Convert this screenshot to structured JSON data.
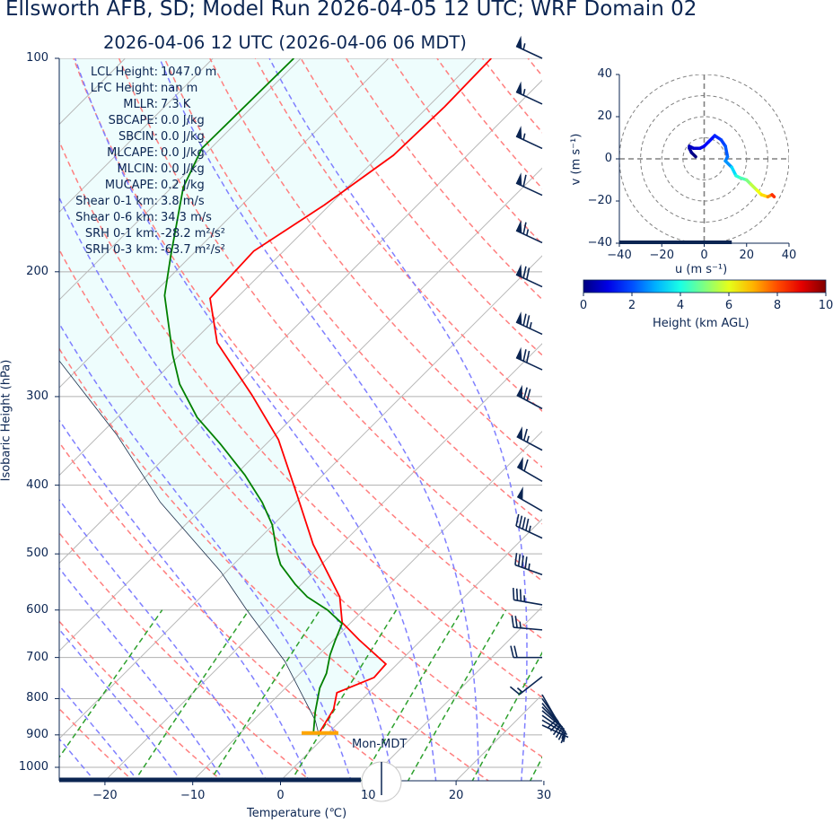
{
  "title": "Ellsworth AFB, SD; Model Run 2026-04-05 12 UTC; WRF Domain 02",
  "subtitle": "2026-04-06 12 UTC  (2026-04-06 06 MDT)",
  "stats": [
    {
      "label": "LCL Height:",
      "value": "1047.0 m"
    },
    {
      "label": "LFC Height:",
      "value": "nan m"
    },
    {
      "label": "MLLR:",
      "value": "7.3 K"
    },
    {
      "label": "SBCAPE:",
      "value": "0.0 J/kg"
    },
    {
      "label": "SBCIN:",
      "value": "0.0 J/kg"
    },
    {
      "label": "MLCAPE:",
      "value": "0.0 J/kg"
    },
    {
      "label": "MLCIN:",
      "value": "0.0 J/kg"
    },
    {
      "label": "MUCAPE:",
      "value": "0.2 J/kg"
    },
    {
      "label": "Shear 0-1 km:",
      "value": "3.8 m/s"
    },
    {
      "label": "Shear 0-6 km:",
      "value": "34.3 m/s"
    },
    {
      "label": "SRH 0-1 km:",
      "value": "-28.2 m²/s²"
    },
    {
      "label": "SRH 0-3 km:",
      "value": "-63.7 m²/s²"
    }
  ],
  "annotation": "Mon-MDT",
  "chart_data": [
    {
      "type": "line",
      "kind": "skew-T log-P",
      "xlabel": "Temperature (℃)",
      "ylabel": "Isobaric Height (hPa)",
      "xlim": [
        -25,
        30
      ],
      "ylim": [
        1050,
        100
      ],
      "y_scale": "log",
      "x_ticks": [
        "−20",
        "−10",
        "0",
        "10",
        "20",
        "30"
      ],
      "x_tick_values": [
        -20,
        -10,
        0,
        10,
        20,
        30
      ],
      "y_ticks": [
        "100",
        "200",
        "300",
        "400",
        "500",
        "600",
        "700",
        "800",
        "900",
        "1000"
      ],
      "y_tick_values": [
        100,
        200,
        300,
        400,
        500,
        600,
        700,
        800,
        900,
        1000
      ],
      "grid": true,
      "colors": {
        "temperature": "#ff0000",
        "dewpoint": "#008000",
        "parcel": "#1c2e4a",
        "cin_shade": "#eefdfd",
        "dry_adiabats": "#ff7f7f",
        "moist_adiabats": "#7f7fff",
        "mixing_ratio": "#2ca02c",
        "lcl_marker": "#ffa500",
        "barbs": "#0b2552"
      },
      "temperature": [
        [
          897,
          -1.0
        ],
        [
          828,
          -2.1
        ],
        [
          785,
          -3.6
        ],
        [
          747,
          -1.1
        ],
        [
          715,
          -1.3
        ],
        [
          661,
          -7.1
        ],
        [
          625,
          -11.0
        ],
        [
          575,
          -14.2
        ],
        [
          534,
          -18.1
        ],
        [
          485,
          -23.2
        ],
        [
          411,
          -30.9
        ],
        [
          345,
          -39.1
        ],
        [
          298,
          -47.3
        ],
        [
          252,
          -57.1
        ],
        [
          218,
          -63.0
        ],
        [
          187,
          -63.4
        ],
        [
          161,
          -60.6
        ],
        [
          137,
          -58.4
        ],
        [
          117,
          -58.1
        ],
        [
          100,
          -58.3
        ]
      ],
      "dewpoint": [
        [
          897,
          -1.6
        ],
        [
          835,
          -3.9
        ],
        [
          773,
          -6.1
        ],
        [
          737,
          -7.0
        ],
        [
          694,
          -8.7
        ],
        [
          661,
          -9.8
        ],
        [
          627,
          -10.9
        ],
        [
          600,
          -14.1
        ],
        [
          575,
          -17.9
        ],
        [
          552,
          -20.7
        ],
        [
          518,
          -24.6
        ],
        [
          499,
          -26.3
        ],
        [
          455,
          -30.1
        ],
        [
          423,
          -33.8
        ],
        [
          387,
          -38.9
        ],
        [
          350,
          -45.2
        ],
        [
          321,
          -50.9
        ],
        [
          288,
          -56.7
        ],
        [
          262,
          -60.8
        ],
        [
          216,
          -68.5
        ],
        [
          190,
          -72.3
        ],
        [
          152,
          -78.7
        ],
        [
          134,
          -81.0
        ],
        [
          100,
          -80.8
        ]
      ],
      "parcel": [
        [
          897,
          -1.0
        ],
        [
          859,
          -2.9
        ],
        [
          709,
          -13.1
        ],
        [
          597,
          -23.6
        ],
        [
          530,
          -30.6
        ],
        [
          423,
          -45.4
        ],
        [
          340,
          -58.0
        ],
        [
          266,
          -73.3
        ],
        [
          100,
          -110
        ]
      ],
      "lcl_pressure": 897,
      "dry_adiabat_thetas_c": [
        -30,
        -20,
        -10,
        0,
        10,
        20,
        30,
        40,
        50,
        60,
        70,
        80,
        90,
        100,
        110,
        120,
        130,
        140,
        150,
        160,
        170,
        180,
        190
      ],
      "moist_adiabat_t1000_c": [
        -34,
        -29,
        -24,
        -19,
        -14,
        -9,
        -4,
        1,
        6,
        11,
        16,
        21,
        26
      ],
      "mixing_ratios_gkg": [
        0.4,
        1,
        2,
        4,
        7,
        10,
        16,
        24,
        32
      ],
      "wind_barbs_kt": [
        {
          "p": 100,
          "speed": 55,
          "dir": 295
        },
        {
          "p": 116,
          "speed": 55,
          "dir": 295
        },
        {
          "p": 134,
          "speed": 55,
          "dir": 295
        },
        {
          "p": 156,
          "speed": 60,
          "dir": 295
        },
        {
          "p": 182,
          "speed": 65,
          "dir": 295
        },
        {
          "p": 210,
          "speed": 70,
          "dir": 295
        },
        {
          "p": 245,
          "speed": 75,
          "dir": 295
        },
        {
          "p": 275,
          "speed": 70,
          "dir": 295
        },
        {
          "p": 312,
          "speed": 70,
          "dir": 298
        },
        {
          "p": 357,
          "speed": 65,
          "dir": 298
        },
        {
          "p": 395,
          "speed": 60,
          "dir": 300
        },
        {
          "p": 435,
          "speed": 50,
          "dir": 300
        },
        {
          "p": 475,
          "speed": 45,
          "dir": 295
        },
        {
          "p": 535,
          "speed": 45,
          "dir": 290
        },
        {
          "p": 590,
          "speed": 35,
          "dir": 280
        },
        {
          "p": 640,
          "speed": 25,
          "dir": 275
        },
        {
          "p": 700,
          "speed": 20,
          "dir": 270
        },
        {
          "p": 745,
          "speed": 15,
          "dir": 232
        },
        {
          "p": 790,
          "speed": 10,
          "dir": 150
        },
        {
          "p": 800,
          "speed": 10,
          "dir": 145
        },
        {
          "p": 812,
          "speed": 15,
          "dir": 140
        },
        {
          "p": 822,
          "speed": 15,
          "dir": 135
        },
        {
          "p": 832,
          "speed": 10,
          "dir": 130
        },
        {
          "p": 845,
          "speed": 10,
          "dir": 125
        },
        {
          "p": 858,
          "speed": 5,
          "dir": 120
        },
        {
          "p": 872,
          "speed": 5,
          "dir": 115
        }
      ]
    },
    {
      "type": "line",
      "kind": "hodograph",
      "xlabel": "u (m s⁻¹)",
      "ylabel": "v (m s⁻¹)",
      "xlim": [
        -40,
        40
      ],
      "ylim": [
        -40,
        40
      ],
      "x_ticks": [
        "−40",
        "−20",
        "0",
        "20",
        "40"
      ],
      "y_ticks": [
        "40",
        "20",
        "0",
        "−20",
        "−40"
      ],
      "tick_values": [
        -40,
        -20,
        0,
        20,
        40
      ],
      "range_rings": [
        10,
        20,
        30,
        40
      ],
      "points_u_v_hkm": [
        [
          -4,
          1,
          0.0
        ],
        [
          -6,
          3,
          0.2
        ],
        [
          -7,
          5,
          0.4
        ],
        [
          -7,
          6,
          0.6
        ],
        [
          -5,
          5,
          0.8
        ],
        [
          -2,
          5,
          1.0
        ],
        [
          0,
          6,
          1.2
        ],
        [
          2,
          8,
          1.4
        ],
        [
          5,
          11,
          1.6
        ],
        [
          8,
          9,
          1.9
        ],
        [
          10,
          6,
          2.1
        ],
        [
          11,
          1,
          2.4
        ],
        [
          10,
          -1,
          2.7
        ],
        [
          13,
          -4,
          3.4
        ],
        [
          15,
          -8,
          4.1
        ],
        [
          17,
          -9,
          4.5
        ],
        [
          20,
          -10,
          5.0
        ],
        [
          22,
          -12,
          5.6
        ],
        [
          25,
          -15,
          6.1
        ],
        [
          27,
          -17,
          6.6
        ],
        [
          30,
          -18,
          7.4
        ],
        [
          32,
          -17,
          8.3
        ],
        [
          33,
          -18,
          9.0
        ]
      ],
      "colorbar": {
        "label": "Height (km AGL)",
        "range": [
          0,
          10
        ],
        "ticks": [
          "0",
          "2",
          "4",
          "6",
          "8",
          "10"
        ],
        "colormap": "jet"
      }
    }
  ]
}
